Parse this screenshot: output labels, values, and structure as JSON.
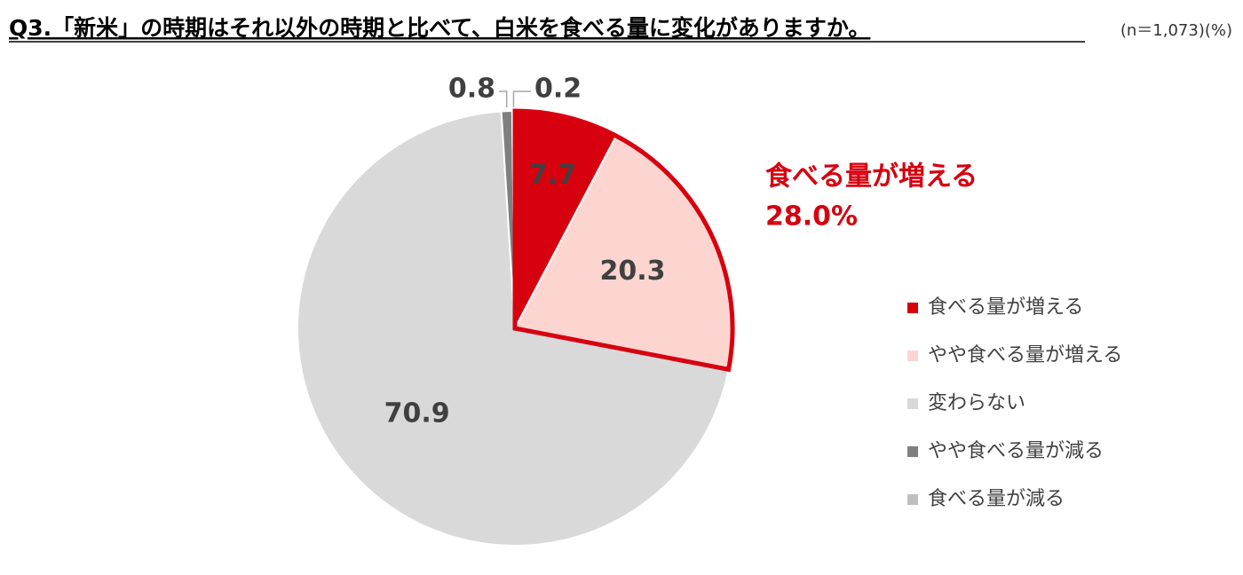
{
  "chart_data": {
    "type": "pie",
    "title": "Q3.「新米」の時期はそれ以外の時期と比べて、白米を食べる量に変化がありますか。",
    "subtitle": "(n＝1,073)(%)",
    "categories": [
      "食べる量が増える",
      "やや食べる量が増える",
      "変わらない",
      "やや食べる量が減る",
      "食べる量が減る"
    ],
    "values": [
      7.7,
      20.3,
      70.9,
      0.8,
      0.2
    ],
    "colors": [
      "#d7000f",
      "#fcd5d0",
      "#d9d9d9",
      "#7f7f7f",
      "#bfbfbf"
    ],
    "legend": "right",
    "annotation": {
      "text": "食べる量が増える",
      "value": 28.0,
      "value_label": "28.0%",
      "color": "#d7000f"
    }
  }
}
